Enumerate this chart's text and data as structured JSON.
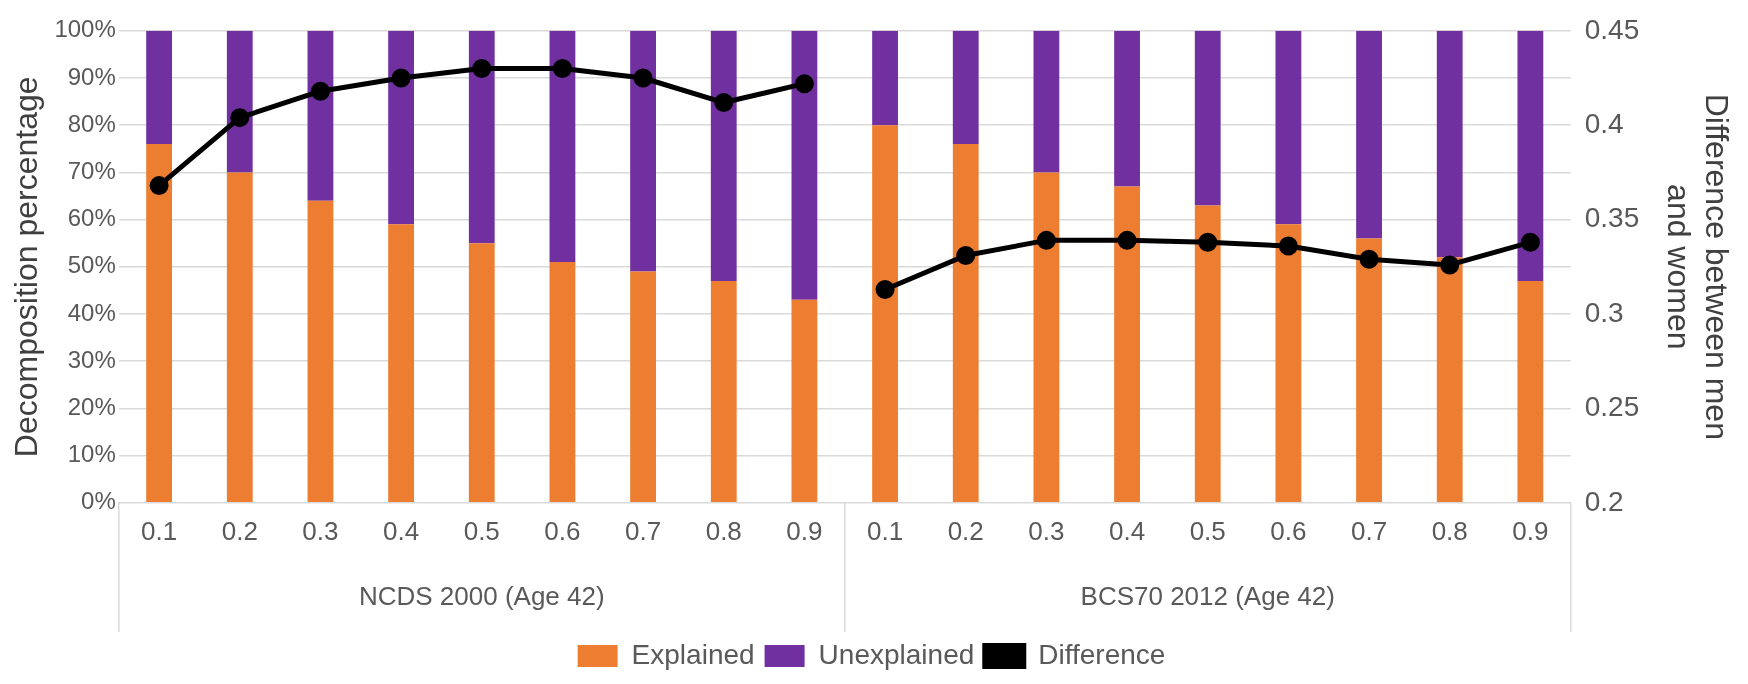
{
  "chart_data": {
    "type": "bar",
    "stacked": true,
    "categories": [
      "0.1",
      "0.2",
      "0.3",
      "0.4",
      "0.5",
      "0.6",
      "0.7",
      "0.8",
      "0.9",
      "0.1",
      "0.2",
      "0.3",
      "0.4",
      "0.5",
      "0.6",
      "0.7",
      "0.8",
      "0.9"
    ],
    "series": [
      {
        "name": "Explained",
        "color": "#ed7d31",
        "values": [
          76,
          70,
          64,
          59,
          55,
          51,
          49,
          47,
          43,
          80,
          76,
          70,
          67,
          63,
          59,
          56,
          52,
          47
        ]
      },
      {
        "name": "Unexplained",
        "color": "#7030a0",
        "values": [
          24,
          30,
          36,
          41,
          45,
          49,
          51,
          53,
          57,
          20,
          24,
          30,
          33,
          37,
          41,
          44,
          48,
          53
        ]
      },
      {
        "name": "Difference",
        "type": "line",
        "axis": "y2",
        "color": "#000000",
        "marker": "circle",
        "values": [
          0.368,
          0.404,
          0.418,
          0.425,
          0.43,
          0.43,
          0.425,
          0.412,
          0.422,
          0.313,
          0.331,
          0.339,
          0.339,
          0.338,
          0.336,
          0.329,
          0.326,
          0.338
        ]
      }
    ],
    "ylabel": "Decomposition percentage",
    "y2label": "Difference between men and women",
    "ylim": [
      0,
      100
    ],
    "yticks": [
      {
        "value": 0,
        "label": "0%"
      },
      {
        "value": 10,
        "label": "10%"
      },
      {
        "value": 20,
        "label": "20%"
      },
      {
        "value": 30,
        "label": "30%"
      },
      {
        "value": 40,
        "label": "40%"
      },
      {
        "value": 50,
        "label": "50%"
      },
      {
        "value": 60,
        "label": "60%"
      },
      {
        "value": 70,
        "label": "70%"
      },
      {
        "value": 80,
        "label": "80%"
      },
      {
        "value": 90,
        "label": "90%"
      },
      {
        "value": 100,
        "label": "100%"
      }
    ],
    "y2lim": [
      0.2,
      0.45
    ],
    "y2ticks": [
      0.2,
      0.25,
      0.3,
      0.35,
      0.4,
      0.45
    ],
    "annotations": [
      "NCDS 2000 (Age 42)",
      "BCS70 2012 (Age 42)"
    ],
    "grid": "y",
    "legend": "bottom"
  }
}
